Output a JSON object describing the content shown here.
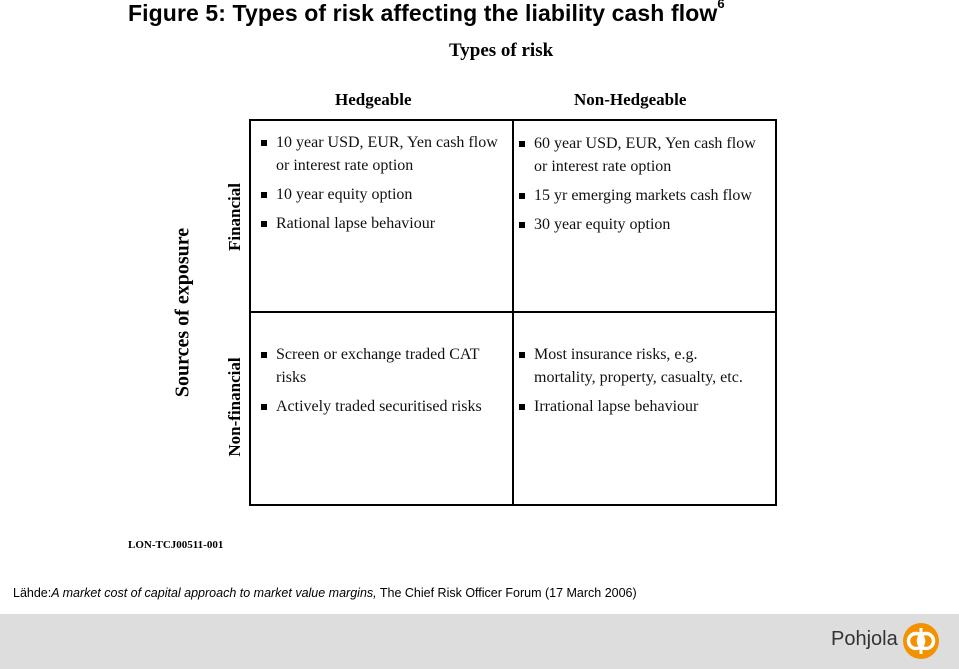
{
  "figure": {
    "title": "Figure 5: Types of risk affecting the liability cash flow",
    "title_superscript": "6"
  },
  "matrix": {
    "top_label": "Types of risk",
    "left_label": "Sources of exposure",
    "columns": [
      "Hedgeable",
      "Non-Hedgeable"
    ],
    "rows": [
      "Financial",
      "Non-financial"
    ],
    "cells": {
      "financial_hedgeable": [
        "10 year USD, EUR, Yen cash flow or interest rate option",
        "10 year equity option",
        "Rational lapse behaviour"
      ],
      "financial_nonhedgeable": [
        "60 year USD, EUR, Yen cash flow or interest rate option",
        "15 yr emerging markets cash flow",
        "30 year equity option"
      ],
      "nonfinancial_hedgeable": [
        "Screen or exchange traded CAT risks",
        "Actively traded securitised risks"
      ],
      "nonfinancial_nonhedgeable": [
        "Most insurance risks, e.g. mortality, property, casualty, etc.",
        "Irrational lapse behaviour"
      ]
    }
  },
  "reference_code": "LON-TCJ00511-001",
  "source": {
    "prefix": "Lähde:",
    "italic_part": "A market cost of capital approach to market value margins,",
    "rest": " The Chief Risk Officer Forum (17 March 2006)"
  },
  "footer": {
    "brand": "Pohjola",
    "accent_color": "#f39200",
    "background_color": "#dddddd"
  }
}
